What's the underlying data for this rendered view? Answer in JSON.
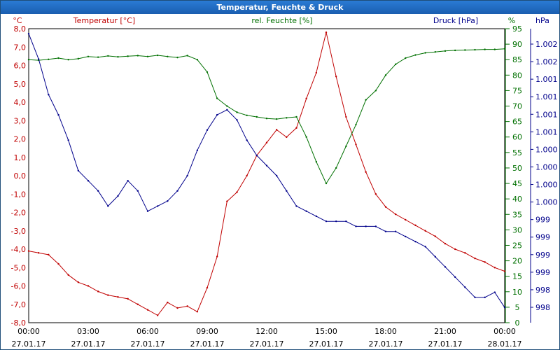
{
  "window": {
    "title": "Temperatur, Feuchte & Druck"
  },
  "chart_data": {
    "type": "line",
    "title": "Temperatur, Feuchte & Druck",
    "grid": true,
    "colors": {
      "temp": "#c00000",
      "hum": "#007000",
      "press": "#00008b"
    },
    "axes": {
      "temp": {
        "label": "Temperatur [°C]",
        "unit": "°C",
        "min": -8,
        "max": 8,
        "ticks": [
          "8,0",
          "7,0",
          "6,0",
          "5,0",
          "4,0",
          "3,0",
          "2,0",
          "1,0",
          "0,0",
          "-1,0",
          "-2,0",
          "-3,0",
          "-4,0",
          "-5,0",
          "-6,0",
          "-7,0",
          "-8,0"
        ]
      },
      "hum": {
        "label": "rel. Feuchte [%]",
        "unit": "%",
        "min": 0,
        "max": 95,
        "ticks": [
          "95",
          "90",
          "85",
          "80",
          "75",
          "70",
          "65",
          "60",
          "55",
          "50",
          "45",
          "40",
          "35",
          "30",
          "25",
          "20",
          "15",
          "10",
          "5",
          "0"
        ]
      },
      "press": {
        "label": "Druck [hPa]",
        "unit": "hPa",
        "ticks": [
          "1.002",
          "1.002",
          "1.001",
          "1.001",
          "1.001",
          "1.001",
          "1.000",
          "1.000",
          "1.000",
          "1.000",
          "999",
          "999",
          "999",
          "999",
          "998",
          "998"
        ]
      }
    },
    "x_ticks": [
      {
        "time": "00:00",
        "date": "27.01.17"
      },
      {
        "time": "03:00",
        "date": "27.01.17"
      },
      {
        "time": "06:00",
        "date": "27.01.17"
      },
      {
        "time": "09:00",
        "date": "27.01.17"
      },
      {
        "time": "12:00",
        "date": "27.01.17"
      },
      {
        "time": "15:00",
        "date": "27.01.17"
      },
      {
        "time": "18:00",
        "date": "27.01.17"
      },
      {
        "time": "21:00",
        "date": "27.01.17"
      },
      {
        "time": "00:00",
        "date": "28.01.17"
      }
    ],
    "x_hours": [
      0,
      0.5,
      1,
      1.5,
      2,
      2.5,
      3,
      3.5,
      4,
      4.5,
      5,
      5.5,
      6,
      6.5,
      7,
      7.5,
      8,
      8.5,
      9,
      9.5,
      10,
      10.5,
      11,
      11.5,
      12,
      12.5,
      13,
      13.5,
      14,
      14.5,
      15,
      15.5,
      16,
      16.5,
      17,
      17.5,
      18,
      18.5,
      19,
      19.5,
      20,
      20.5,
      21,
      21.5,
      22,
      22.5,
      23,
      23.5,
      24
    ],
    "series": [
      {
        "name": "Temperatur [°C]",
        "color": "#c00000",
        "values": [
          -4.1,
          -4.2,
          -4.3,
          -4.8,
          -5.4,
          -5.8,
          -6.0,
          -6.3,
          -6.5,
          -6.6,
          -6.7,
          -7.0,
          -7.3,
          -7.6,
          -6.9,
          -7.2,
          -7.1,
          -7.4,
          -6.1,
          -4.4,
          -1.4,
          -0.9,
          0.0,
          1.1,
          1.8,
          2.5,
          2.1,
          2.6,
          4.2,
          5.6,
          7.8,
          5.4,
          3.2,
          1.7,
          0.2,
          -1.0,
          -1.7,
          -2.1,
          -2.4,
          -2.7,
          -3.0,
          -3.3,
          -3.7,
          -4.0,
          -4.2,
          -4.5,
          -4.7,
          -5.0,
          -5.2
        ]
      },
      {
        "name": "rel. Feuchte [%]",
        "color": "#007000",
        "values": [
          85.0,
          84.8,
          85.1,
          85.5,
          85.0,
          85.3,
          86.0,
          85.8,
          86.2,
          85.9,
          86.1,
          86.3,
          86.0,
          86.4,
          86.0,
          85.7,
          86.3,
          85.0,
          81.0,
          72.5,
          70.0,
          68.0,
          67.0,
          66.5,
          66.0,
          65.8,
          66.2,
          66.5,
          60.0,
          52.0,
          45.0,
          50.0,
          57.0,
          64.0,
          72.0,
          75.0,
          80.0,
          83.5,
          85.5,
          86.5,
          87.2,
          87.5,
          87.8,
          88.0,
          88.1,
          88.2,
          88.3,
          88.3,
          88.5
        ]
      },
      {
        "name": "Druck [hPa]",
        "color": "#00008b",
        "values": [
          1002.7,
          1002.2,
          1001.5,
          1001.1,
          1000.6,
          1000.0,
          999.8,
          999.6,
          999.3,
          999.5,
          999.8,
          999.6,
          999.2,
          999.3,
          999.4,
          999.6,
          999.9,
          1000.4,
          1000.8,
          1001.1,
          1001.2,
          1001.0,
          1000.6,
          1000.3,
          1000.1,
          999.9,
          999.6,
          999.3,
          999.2,
          999.1,
          999.0,
          999.0,
          999.0,
          998.9,
          998.9,
          998.9,
          998.8,
          998.8,
          998.7,
          998.6,
          998.5,
          998.3,
          998.1,
          997.9,
          997.7,
          997.5,
          997.5,
          997.6,
          997.3
        ]
      }
    ]
  }
}
